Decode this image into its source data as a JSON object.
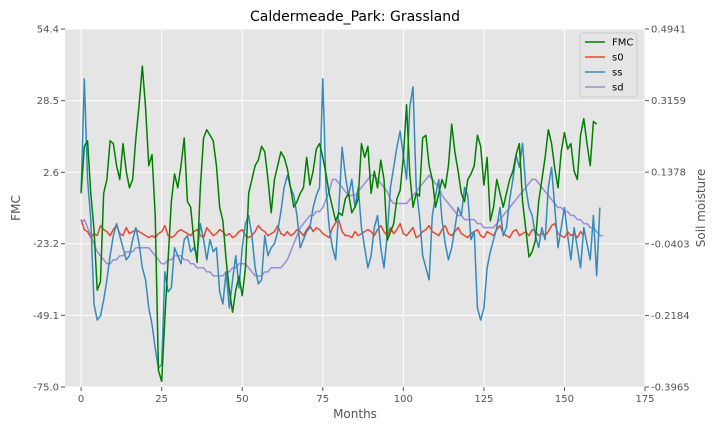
{
  "chart_data": {
    "type": "line",
    "title": "Caldermeade_Park: Grassland",
    "xlabel": "Months",
    "ylabel": "FMC",
    "y2label": "Soil moisture",
    "xlim": [
      -5,
      175
    ],
    "ylim": [
      -75.0,
      54.4
    ],
    "y2lim": [
      -0.3965,
      0.4941
    ],
    "x_ticks": [
      0,
      25,
      50,
      75,
      100,
      125,
      150,
      175
    ],
    "y_ticks": [
      -75.0,
      -49.1,
      -23.2,
      2.6,
      28.5,
      54.4
    ],
    "y_tick_labels": [
      "-75.0",
      "-49.1",
      "-23.2",
      "2.6",
      "28.5",
      "54.4"
    ],
    "y2_ticks": [
      -0.3965,
      -0.2184,
      -0.0403,
      0.1378,
      0.3159,
      0.4941
    ],
    "y2_tick_labels": [
      "-0.3965",
      "-0.2184",
      "-0.0403",
      "0.1378",
      "0.3159",
      "0.4941"
    ],
    "grid": true,
    "legend_position": "top-right",
    "series": [
      {
        "name": "FMC",
        "axis": "left",
        "color": "#008000",
        "values": [
          -5,
          12,
          14,
          -5,
          -18,
          -40,
          -37,
          -5,
          0,
          14,
          13,
          5,
          0,
          13,
          3,
          -3,
          0,
          15,
          27,
          41,
          26,
          5,
          9,
          -13,
          -69,
          -73,
          -50,
          -29,
          -8,
          2,
          -3,
          5,
          15,
          -8,
          -10,
          -22,
          -30,
          -3,
          15,
          18,
          16,
          14,
          5,
          -10,
          -15,
          -29,
          -40,
          -48,
          -40,
          -35,
          -42,
          -32,
          -5,
          0,
          5,
          7,
          12,
          10,
          0,
          -12,
          0,
          5,
          10,
          8,
          4,
          -3,
          -10,
          -8,
          -5,
          -3,
          8,
          -2,
          3,
          11,
          13,
          8,
          2,
          -5,
          -10,
          -15,
          -12,
          -13,
          -7,
          -5,
          -12,
          -10,
          -7,
          13,
          8,
          12,
          -5,
          3,
          -3,
          7,
          0,
          -22,
          -19,
          -16,
          -7,
          -4,
          8,
          27,
          2,
          -10,
          -5,
          -6,
          15,
          16,
          5,
          0,
          -10,
          -5,
          0,
          -3,
          5,
          20,
          10,
          3,
          -5,
          -8,
          0,
          2,
          5,
          16,
          12,
          -2,
          8,
          -15,
          -10,
          0,
          -5,
          -10,
          -5,
          0,
          3,
          9,
          13,
          -8,
          -18,
          -28,
          -26,
          -22,
          -8,
          0,
          8,
          18,
          13,
          4,
          -3,
          10,
          17,
          11,
          13,
          3,
          0,
          16,
          22,
          13,
          5,
          21,
          20
        ]
      },
      {
        "name": "s0",
        "axis": "right",
        "color": "#e24a33",
        "values": [
          0.02,
          -0.005,
          -0.01,
          -0.025,
          -0.015,
          -0.02,
          0.005,
          -0.005,
          -0.01,
          -0.02,
          -0.005,
          0.005,
          -0.015,
          -0.02,
          0.0,
          -0.015,
          -0.01,
          -0.005,
          -0.01,
          -0.015,
          -0.02,
          -0.025,
          -0.02,
          -0.025,
          -0.015,
          -0.01,
          0.005,
          -0.02,
          -0.025,
          -0.02,
          -0.01,
          -0.005,
          -0.01,
          -0.015,
          -0.02,
          -0.01,
          -0.005,
          -0.02,
          -0.025,
          0.0,
          -0.01,
          -0.02,
          -0.015,
          -0.005,
          -0.01,
          -0.02,
          -0.015,
          -0.025,
          -0.02,
          -0.01,
          -0.005,
          -0.02,
          -0.025,
          -0.02,
          -0.01,
          0.005,
          -0.005,
          -0.01,
          -0.02,
          -0.015,
          -0.01,
          0.005,
          -0.015,
          -0.02,
          -0.01,
          -0.02,
          -0.015,
          -0.005,
          -0.01,
          -0.02,
          -0.005,
          0.005,
          -0.01,
          0.0,
          -0.005,
          -0.015,
          -0.02,
          -0.025,
          0.0,
          0.012,
          0.018,
          -0.01,
          -0.02,
          -0.02,
          -0.025,
          -0.01,
          -0.02,
          -0.015,
          -0.01,
          -0.005,
          -0.01,
          -0.02,
          -0.005,
          0.005,
          -0.01,
          -0.02,
          0.0,
          -0.015,
          -0.005,
          0.01,
          -0.015,
          -0.02,
          -0.01,
          0.0,
          -0.025,
          -0.02,
          -0.01,
          -0.005,
          0.005,
          -0.01,
          -0.015,
          -0.02,
          -0.005,
          0.005,
          -0.015,
          -0.02,
          -0.01,
          0.0,
          -0.015,
          -0.02,
          -0.025,
          -0.015,
          -0.01,
          -0.005,
          -0.02,
          -0.025,
          -0.01,
          -0.015,
          -0.02,
          -0.005,
          0.005,
          -0.015,
          -0.02,
          -0.025,
          -0.01,
          -0.005,
          -0.02,
          -0.015,
          -0.01,
          -0.02,
          -0.005,
          -0.01,
          -0.02,
          -0.015,
          -0.02,
          -0.01,
          0.005,
          0.01,
          -0.015,
          -0.02,
          -0.025,
          -0.01,
          -0.02,
          -0.015,
          -0.025,
          -0.01,
          -0.02
        ]
      },
      {
        "name": "ss",
        "axis": "right",
        "color": "#348abd",
        "values": [
          0.09,
          0.37,
          0.12,
          0.02,
          -0.19,
          -0.23,
          -0.22,
          -0.18,
          -0.13,
          -0.07,
          -0.02,
          0.01,
          -0.02,
          -0.05,
          -0.08,
          -0.07,
          -0.03,
          0.0,
          -0.04,
          -0.1,
          -0.13,
          -0.2,
          -0.24,
          -0.3,
          -0.35,
          -0.34,
          -0.11,
          -0.16,
          -0.15,
          -0.05,
          -0.07,
          -0.09,
          -0.03,
          -0.02,
          -0.06,
          -0.05,
          -0.07,
          0.01,
          -0.03,
          -0.08,
          -0.03,
          -0.06,
          -0.05,
          -0.16,
          -0.19,
          -0.11,
          -0.2,
          -0.13,
          -0.07,
          -0.15,
          -0.05,
          0.01,
          0.03,
          -0.02,
          -0.1,
          -0.14,
          -0.13,
          -0.02,
          -0.07,
          -0.05,
          -0.04,
          -0.01,
          0.04,
          0.1,
          0.13,
          0.1,
          0.08,
          0.03,
          -0.05,
          -0.03,
          -0.01,
          0.0,
          0.05,
          0.08,
          0.1,
          0.37,
          0.1,
          0.0,
          -0.05,
          -0.08,
          0.05,
          0.2,
          0.13,
          0.08,
          0.12,
          0.05,
          0.1,
          0.0,
          -0.05,
          -0.1,
          -0.07,
          0.0,
          0.03,
          -0.05,
          -0.1,
          -0.02,
          0.1,
          0.15,
          0.2,
          0.24,
          0.18,
          0.12,
          0.3,
          0.35,
          0.1,
          0.03,
          -0.07,
          -0.1,
          -0.13,
          0.03,
          0.08,
          0.12,
          0.02,
          -0.04,
          -0.08,
          -0.05,
          0.0,
          0.05,
          0.03,
          0.1,
          0.08,
          -0.03,
          -0.01,
          -0.2,
          -0.23,
          -0.2,
          -0.1,
          -0.06,
          -0.03,
          0.0,
          0.05,
          -0.02,
          0.0,
          0.07,
          0.12,
          0.18,
          0.15,
          0.21,
          0.1,
          0.05,
          0.03,
          -0.02,
          -0.05,
          0.0,
          -0.03,
          0.1,
          0.15,
          0.05,
          -0.05,
          0.0,
          0.05,
          -0.02,
          -0.08,
          0.0,
          -0.05,
          -0.1,
          0.0,
          -0.04,
          -0.08,
          0.03,
          -0.12,
          0.05
        ]
      },
      {
        "name": "sd",
        "axis": "right",
        "color": "#988ed5",
        "values": [
          0.01,
          0.02,
          0.0,
          -0.02,
          -0.04,
          -0.06,
          -0.07,
          -0.08,
          -0.09,
          -0.09,
          -0.08,
          -0.08,
          -0.07,
          -0.07,
          -0.06,
          -0.06,
          -0.06,
          -0.05,
          -0.05,
          -0.05,
          -0.05,
          -0.05,
          -0.06,
          -0.07,
          -0.08,
          -0.09,
          -0.09,
          -0.08,
          -0.08,
          -0.07,
          -0.07,
          -0.07,
          -0.08,
          -0.08,
          -0.09,
          -0.09,
          -0.1,
          -0.1,
          -0.1,
          -0.11,
          -0.11,
          -0.12,
          -0.12,
          -0.12,
          -0.12,
          -0.11,
          -0.11,
          -0.1,
          -0.1,
          -0.09,
          -0.09,
          -0.09,
          -0.1,
          -0.11,
          -0.12,
          -0.12,
          -0.12,
          -0.11,
          -0.11,
          -0.1,
          -0.1,
          -0.1,
          -0.1,
          -0.09,
          -0.08,
          -0.06,
          -0.04,
          -0.02,
          0.0,
          0.01,
          0.02,
          0.03,
          0.03,
          0.04,
          0.04,
          0.05,
          0.07,
          0.09,
          0.12,
          0.12,
          0.11,
          0.1,
          0.09,
          0.08,
          0.08,
          0.08,
          0.09,
          0.1,
          0.11,
          0.12,
          0.13,
          0.13,
          0.12,
          0.11,
          0.1,
          0.09,
          0.07,
          0.06,
          0.06,
          0.06,
          0.06,
          0.06,
          0.07,
          0.08,
          0.09,
          0.1,
          0.11,
          0.12,
          0.13,
          0.12,
          0.11,
          0.1,
          0.08,
          0.07,
          0.06,
          0.05,
          0.04,
          0.03,
          0.03,
          0.02,
          0.02,
          0.02,
          0.02,
          0.01,
          0.01,
          0.0,
          0.0,
          0.0,
          0.0,
          0.01,
          0.02,
          0.03,
          0.04,
          0.05,
          0.06,
          0.07,
          0.08,
          0.09,
          0.1,
          0.11,
          0.12,
          0.12,
          0.11,
          0.1,
          0.09,
          0.08,
          0.07,
          0.06,
          0.05,
          0.05,
          0.04,
          0.04,
          0.03,
          0.03,
          0.02,
          0.02,
          0.01,
          0.01,
          0.0,
          0.0,
          -0.01,
          -0.02,
          -0.02
        ]
      }
    ]
  }
}
